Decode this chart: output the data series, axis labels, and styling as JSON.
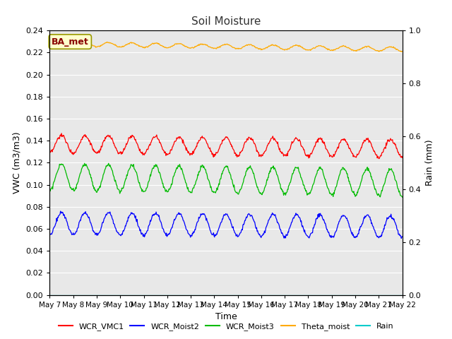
{
  "title": "Soil Moisture",
  "xlabel": "Time",
  "ylabel_left": "VWC (m3/m3)",
  "ylabel_right": "Rain (mm)",
  "ylim_left": [
    0.0,
    0.24
  ],
  "ylim_right": [
    0.0,
    1.0
  ],
  "yticks_left": [
    0.0,
    0.02,
    0.04,
    0.06,
    0.08,
    0.1,
    0.12,
    0.14,
    0.16,
    0.18,
    0.2,
    0.22,
    0.24
  ],
  "yticks_right": [
    0.0,
    0.2,
    0.4,
    0.6,
    0.8,
    1.0
  ],
  "xtick_labels": [
    "May 7",
    "May 8",
    "May 9",
    "May 10",
    "May 11",
    "May 12",
    "May 13",
    "May 14",
    "May 15",
    "May 16",
    "May 17",
    "May 18",
    "May 19",
    "May 20",
    "May 21",
    "May 22"
  ],
  "background_color": "#ffffff",
  "plot_bg_color": "#e8e8e8",
  "grid_color": "#ffffff",
  "annotation_text": "BA_met",
  "annotation_bg": "#ffffcc",
  "annotation_border": "#999900",
  "annotation_text_color": "#880000",
  "series": {
    "WCR_VMC1": {
      "color": "#ff0000"
    },
    "WCR_Moist2": {
      "color": "#0000ff"
    },
    "WCR_Moist3": {
      "color": "#00bb00"
    },
    "Theta_moist": {
      "color": "#ffaa00"
    },
    "Rain": {
      "color": "#00cccc"
    }
  },
  "legend_entries": [
    {
      "label": "WCR_VMC1",
      "color": "#ff0000"
    },
    {
      "label": "WCR_Moist2",
      "color": "#0000ff"
    },
    {
      "label": "WCR_Moist3",
      "color": "#00bb00"
    },
    {
      "label": "Theta_moist",
      "color": "#ffaa00"
    },
    {
      "label": "Rain",
      "color": "#00cccc"
    }
  ]
}
